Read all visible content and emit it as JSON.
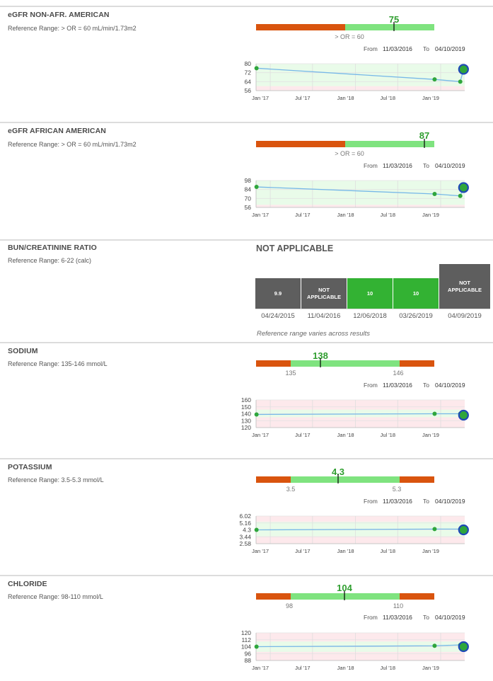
{
  "colors": {
    "bad": "#d9540e",
    "good": "#7fe37f",
    "value_text": "#2f9e2f",
    "line": "#77b8e8",
    "point": "#2fa63c",
    "latest_ring": "#1f48b8",
    "good_band": "#e9fbe9",
    "bad_band": "#fde9ec",
    "cell_na": "#5e5e5e",
    "cell_ok": "#33b233"
  },
  "tests": [
    {
      "name": "eGFR NON-AFR. AMERICAN",
      "reference": "Reference Range: > OR = 60 mL/min/1.73m2",
      "value": "75",
      "range_labels": [
        "> OR = 60"
      ],
      "from_label": "From",
      "from_date": "11/03/2016",
      "to_label": "To",
      "to_date": "04/10/2019",
      "chart_data": {
        "type": "line",
        "x_ticks": [
          "Jan '17",
          "Jul '17",
          "Jan '18",
          "Jul '18",
          "Jan '19"
        ],
        "y_ticks": [
          80,
          72,
          64,
          56
        ],
        "ylim": [
          56,
          80
        ],
        "normal_range": [
          60,
          80
        ],
        "points": [
          {
            "date": "2016-11-03",
            "value": 76
          },
          {
            "date": "2018-12-06",
            "value": 66
          },
          {
            "date": "2019-03-26",
            "value": 64
          },
          {
            "date": "2019-04-09",
            "value": 75
          }
        ]
      }
    },
    {
      "name": "eGFR AFRICAN AMERICAN",
      "reference": "Reference Range: > OR = 60 mL/min/1.73m2",
      "value": "87",
      "range_labels": [
        "> OR = 60"
      ],
      "from_label": "From",
      "from_date": "11/03/2016",
      "to_label": "To",
      "to_date": "04/10/2019",
      "chart_data": {
        "type": "line",
        "x_ticks": [
          "Jan '17",
          "Jul '17",
          "Jan '18",
          "Jul '18",
          "Jan '19"
        ],
        "y_ticks": [
          98,
          84,
          70,
          56
        ],
        "ylim": [
          56,
          98
        ],
        "normal_range": [
          60,
          98
        ],
        "points": [
          {
            "date": "2016-11-03",
            "value": 88
          },
          {
            "date": "2018-12-06",
            "value": 77
          },
          {
            "date": "2019-03-26",
            "value": 74
          },
          {
            "date": "2019-04-09",
            "value": 87
          }
        ]
      }
    },
    {
      "name": "SODIUM",
      "reference": "Reference Range: 135-146 mmol/L",
      "value": "138",
      "range_labels": [
        "135",
        "146"
      ],
      "from_label": "From",
      "from_date": "11/03/2016",
      "to_label": "To",
      "to_date": "04/10/2019",
      "chart_data": {
        "type": "line",
        "x_ticks": [
          "Jan '17",
          "Jul '17",
          "Jan '18",
          "Jul '18",
          "Jan '19"
        ],
        "y_ticks": [
          160,
          150,
          140,
          130,
          120
        ],
        "ylim": [
          120,
          160
        ],
        "normal_range": [
          135,
          146
        ],
        "points": [
          {
            "date": "2016-11-03",
            "value": 139
          },
          {
            "date": "2018-12-06",
            "value": 140
          },
          {
            "date": "2019-03-26",
            "value": 140
          },
          {
            "date": "2019-04-09",
            "value": 138
          }
        ]
      }
    },
    {
      "name": "POTASSIUM",
      "reference": "Reference Range: 3.5-5.3 mmol/L",
      "value": "4.3",
      "range_labels": [
        "3.5",
        "5.3"
      ],
      "from_label": "From",
      "from_date": "11/03/2016",
      "to_label": "To",
      "to_date": "04/10/2019",
      "chart_data": {
        "type": "line",
        "x_ticks": [
          "Jan '17",
          "Jul '17",
          "Jan '18",
          "Jul '18",
          "Jan '19"
        ],
        "y_ticks": [
          6.02,
          5.16,
          4.3,
          3.44,
          2.58
        ],
        "ylim": [
          2.58,
          6.02
        ],
        "normal_range": [
          3.5,
          5.3
        ],
        "points": [
          {
            "date": "2016-11-03",
            "value": 4.3
          },
          {
            "date": "2018-12-06",
            "value": 4.4
          },
          {
            "date": "2019-03-26",
            "value": 4.4
          },
          {
            "date": "2019-04-09",
            "value": 4.3
          }
        ]
      }
    },
    {
      "name": "CHLORIDE",
      "reference": "Reference Range: 98-110 mmol/L",
      "value": "104",
      "range_labels": [
        "98",
        "110"
      ],
      "from_label": "From",
      "from_date": "11/03/2016",
      "to_label": "To",
      "to_date": "04/10/2019",
      "chart_data": {
        "type": "line",
        "x_ticks": [
          "Jan '17",
          "Jul '17",
          "Jan '18",
          "Jul '18",
          "Jan '19"
        ],
        "y_ticks": [
          120,
          112,
          104,
          96,
          88
        ],
        "ylim": [
          88,
          120
        ],
        "normal_range": [
          98,
          110
        ],
        "points": [
          {
            "date": "2016-11-03",
            "value": 104
          },
          {
            "date": "2018-12-06",
            "value": 105
          },
          {
            "date": "2019-03-26",
            "value": 106
          },
          {
            "date": "2019-04-09",
            "value": 104
          }
        ]
      }
    }
  ],
  "bun": {
    "name": "BUN/CREATININE RATIO",
    "reference": "Reference Range: 6-22 (calc)",
    "status": "NOT APPLICABLE",
    "note": "Reference range varies across results",
    "history": [
      {
        "value": "9.9",
        "date": "04/24/2015",
        "color": "#5e5e5e"
      },
      {
        "value": "NOT APPLICABLE",
        "date": "11/04/2016",
        "color": "#5e5e5e"
      },
      {
        "value": "10",
        "date": "12/06/2018",
        "color": "#33b233"
      },
      {
        "value": "10",
        "date": "03/26/2019",
        "color": "#33b233"
      },
      {
        "value": "NOT APPLICABLE",
        "date": "04/09/2019",
        "color": "#5e5e5e"
      }
    ]
  }
}
